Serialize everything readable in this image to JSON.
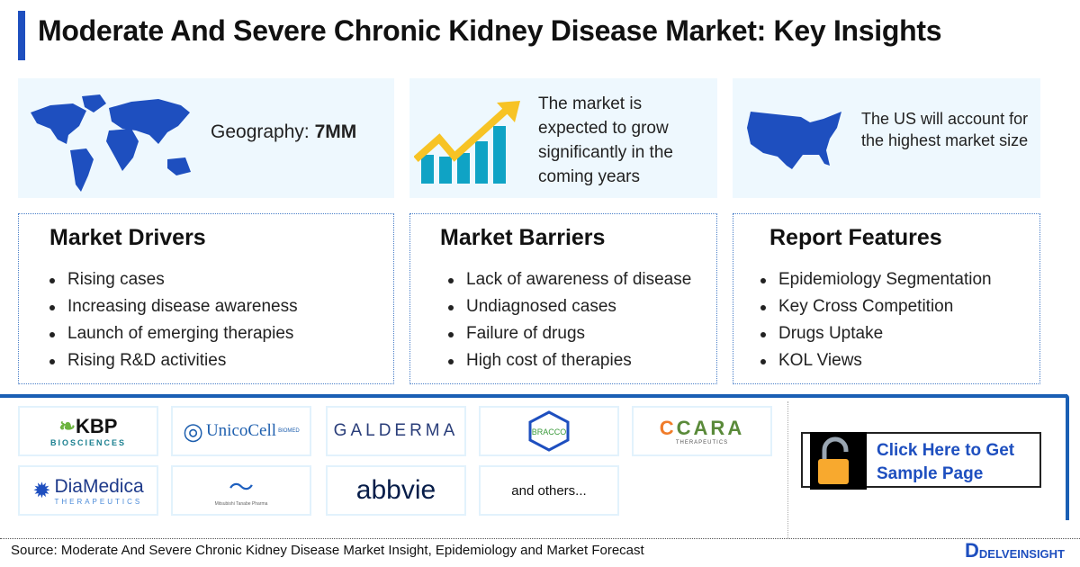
{
  "title": "Moderate And Severe Chronic Kidney Disease Market: Key Insights",
  "cards": {
    "geography_label": "Geography: ",
    "geography_value": "7MM",
    "growth_text": "The market is expected to grow significantly in the coming years",
    "us_text": "The US will account for the highest market size"
  },
  "drivers": {
    "heading": "Market Drivers",
    "items": [
      "Rising cases",
      "Increasing disease awareness",
      "Launch of emerging therapies",
      "Rising R&D activities"
    ]
  },
  "barriers": {
    "heading": "Market Barriers",
    "items": [
      "Lack of awareness of disease",
      "Undiagnosed cases",
      "Failure of drugs",
      "High cost of therapies"
    ]
  },
  "features": {
    "heading": "Report Features",
    "items": [
      "Epidemiology Segmentation",
      "Key Cross Competition",
      "Drugs Uptake",
      "KOL Views"
    ]
  },
  "logos": [
    "KBP",
    "BIOSCIENCES",
    "UnicoCell",
    "BIOMED",
    "GALDERMA",
    "BRACCO",
    "CARA",
    "THERAPEUTICS",
    "DiaMedica",
    "THERAPEUTICS",
    "Mitsubishi Tanabe Pharma",
    "abbvie",
    "and others..."
  ],
  "cta": "Click Here to Get Sample Page",
  "source": "Source: Moderate And Severe Chronic Kidney Disease Market Insight, Epidemiology and Market Forecast",
  "brand": "DELVEINSIGHT",
  "colors": {
    "accent": "#1e4fbf",
    "card_bg": "#eef8fe",
    "arrow": "#f7c325",
    "bars": "#0fa3c5",
    "lock": "#f8a92e"
  }
}
